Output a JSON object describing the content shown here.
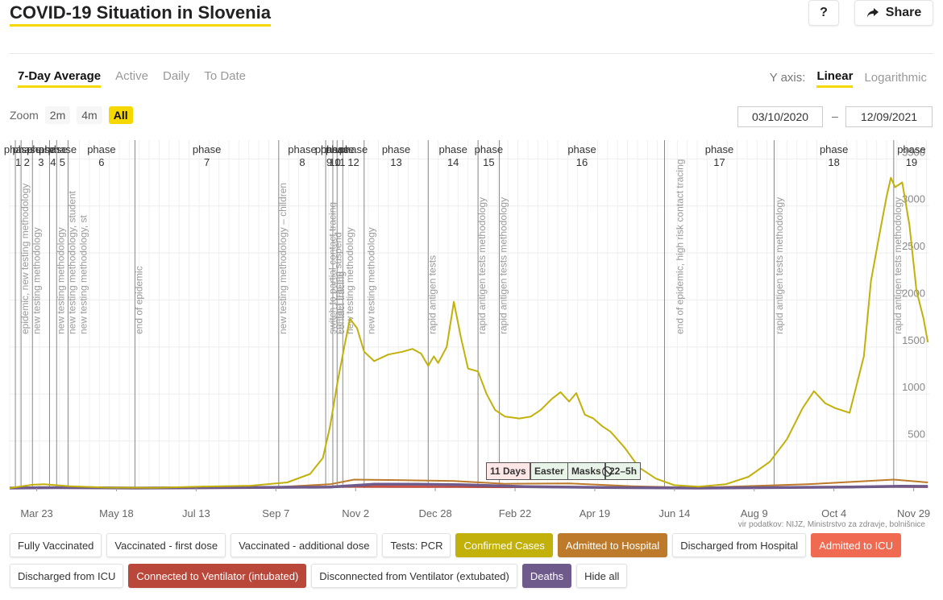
{
  "page": {
    "title": "COVID-19 Situation in Slovenia"
  },
  "header": {
    "help_label": "?",
    "share_label": "Share"
  },
  "tabs": [
    {
      "label": "7-Day Average",
      "active": true
    },
    {
      "label": "Active",
      "active": false
    },
    {
      "label": "Daily",
      "active": false
    },
    {
      "label": "To Date",
      "active": false
    }
  ],
  "yaxis": {
    "label": "Y axis:",
    "linear": "Linear",
    "log": "Logarithmic",
    "selected": "Linear"
  },
  "zoom": {
    "label": "Zoom",
    "options": [
      "2m",
      "4m",
      "All"
    ],
    "selected": "All"
  },
  "date_range": {
    "from": "03/10/2020",
    "separator": "–",
    "to": "12/09/2021"
  },
  "credit": "vir podatkov: NIJZ, Ministrstvo za zdravje, bolnišnice",
  "annotations": [
    {
      "label": "11 Days",
      "bg": "#fde6e6"
    },
    {
      "label": "Easter",
      "bg": "#e8f4e8"
    },
    {
      "label": "Masks",
      "bg": "#e8f4e8"
    },
    {
      "label": "⃠22–5h",
      "bg": "#e8f4e8"
    }
  ],
  "legend": [
    {
      "label": "Fully Vaccinated",
      "on": false,
      "color": ""
    },
    {
      "label": "Vaccinated - first dose",
      "on": false,
      "color": ""
    },
    {
      "label": "Vaccinated - additional dose",
      "on": false,
      "color": ""
    },
    {
      "label": "Tests: PCR",
      "on": false,
      "color": ""
    },
    {
      "label": "Confirmed Cases",
      "on": true,
      "color": "#c2b00b"
    },
    {
      "label": "Admitted to Hospital",
      "on": true,
      "color": "#bd7a2a"
    },
    {
      "label": "Discharged from Hospital",
      "on": false,
      "color": ""
    },
    {
      "label": "Admitted to ICU",
      "on": true,
      "color": "#f06a52"
    },
    {
      "label": "Discharged from ICU",
      "on": false,
      "color": ""
    },
    {
      "label": "Connected to Ventilator (intubated)",
      "on": true,
      "color": "#b9473a"
    },
    {
      "label": "Disconnected from Ventilator (extubated)",
      "on": false,
      "color": ""
    },
    {
      "label": "Deaths",
      "on": true,
      "color": "#6f5a8c"
    },
    {
      "label": "Hide all",
      "on": false,
      "color": ""
    }
  ],
  "chart_data": {
    "type": "line",
    "y_scale": "linear",
    "ylim": [
      0,
      3700
    ],
    "y_ticks": [
      500,
      1000,
      1500,
      2000,
      2500,
      3000,
      3500
    ],
    "x_domain": [
      "2020-03-04",
      "2021-12-10"
    ],
    "x_ticks": [
      {
        "date": "2020-03-23",
        "label": "Mar 23"
      },
      {
        "date": "2020-05-18",
        "label": "May 18"
      },
      {
        "date": "2020-07-13",
        "label": "Jul 13"
      },
      {
        "date": "2020-09-07",
        "label": "Sep 7"
      },
      {
        "date": "2020-11-02",
        "label": "Nov 2"
      },
      {
        "date": "2020-12-28",
        "label": "Dec 28"
      },
      {
        "date": "2021-02-22",
        "label": "Feb 22"
      },
      {
        "date": "2021-04-19",
        "label": "Apr 19"
      },
      {
        "date": "2021-06-14",
        "label": "Jun 14"
      },
      {
        "date": "2021-08-09",
        "label": "Aug 9"
      },
      {
        "date": "2021-10-04",
        "label": "Oct 4"
      },
      {
        "date": "2021-11-29",
        "label": "Nov 29"
      }
    ],
    "grid": true,
    "phases": [
      {
        "date": "2020-03-08",
        "name": "1"
      },
      {
        "date": "2020-03-12",
        "name": "2"
      },
      {
        "date": "2020-03-20",
        "name": "3"
      },
      {
        "date": "2020-04-01",
        "name": "4"
      },
      {
        "date": "2020-04-06",
        "name": "5"
      },
      {
        "date": "2020-04-14",
        "name": "6"
      },
      {
        "date": "2020-05-31",
        "name": "7"
      },
      {
        "date": "2020-09-09",
        "name": "8"
      },
      {
        "date": "2020-10-12",
        "name": "9"
      },
      {
        "date": "2020-10-17",
        "name": "10"
      },
      {
        "date": "2020-10-20",
        "name": "11"
      },
      {
        "date": "2020-10-24",
        "name": "12"
      },
      {
        "date": "2020-11-08",
        "name": "13"
      },
      {
        "date": "2020-12-23",
        "name": "14"
      },
      {
        "date": "2021-01-27",
        "name": "15"
      },
      {
        "date": "2021-02-11",
        "name": "16"
      },
      {
        "date": "2021-06-07",
        "name": "17"
      },
      {
        "date": "2021-08-23",
        "name": "18"
      },
      {
        "date": "2021-11-15",
        "name": "19"
      }
    ],
    "phase_word": "phase",
    "event_labels": [
      {
        "date": "2020-03-12",
        "text": "epidemic, new testing methodology"
      },
      {
        "date": "2020-03-20",
        "text": "new testing methodology"
      },
      {
        "date": "2020-04-06",
        "text": "new testing methodology"
      },
      {
        "date": "2020-04-14",
        "text": "new testing methodology, student"
      },
      {
        "date": "2020-04-22",
        "text": "new testing methodology, st"
      },
      {
        "date": "2020-05-31",
        "text": "end of epidemic"
      },
      {
        "date": "2020-09-09",
        "text": "new testing methodology – children"
      },
      {
        "date": "2020-10-14",
        "text": "switch to partial contact tracing"
      },
      {
        "date": "2020-10-18",
        "text": "contact tracing suspend"
      },
      {
        "date": "2020-10-20",
        "text": "contact tracing"
      },
      {
        "date": "2020-10-26",
        "text": "new testing methodology"
      },
      {
        "date": "2020-11-10",
        "text": "new testing methodology"
      },
      {
        "date": "2020-12-23",
        "text": "rapid antigen tests"
      },
      {
        "date": "2021-01-27",
        "text": "rapid antigen tests methodology"
      },
      {
        "date": "2021-02-11",
        "text": "rapid antigen tests methodology"
      },
      {
        "date": "2021-06-15",
        "text": "end of epidemic, high risk contact tracing"
      },
      {
        "date": "2021-08-24",
        "text": "rapid antigen tests methodology"
      },
      {
        "date": "2021-11-15",
        "text": "rapid antigen tests methodology"
      }
    ],
    "series": [
      {
        "name": "Confirmed Cases",
        "color": "#c2b00b",
        "points": [
          [
            "2020-03-04",
            0
          ],
          [
            "2020-03-20",
            35
          ],
          [
            "2020-03-28",
            40
          ],
          [
            "2020-04-15",
            20
          ],
          [
            "2020-05-10",
            5
          ],
          [
            "2020-06-15",
            3
          ],
          [
            "2020-07-15",
            15
          ],
          [
            "2020-08-20",
            25
          ],
          [
            "2020-09-15",
            60
          ],
          [
            "2020-10-01",
            150
          ],
          [
            "2020-10-10",
            320
          ],
          [
            "2020-10-15",
            650
          ],
          [
            "2020-10-20",
            1100
          ],
          [
            "2020-10-25",
            1500
          ],
          [
            "2020-10-29",
            1800
          ],
          [
            "2020-11-03",
            1700
          ],
          [
            "2020-11-08",
            1450
          ],
          [
            "2020-11-15",
            1350
          ],
          [
            "2020-11-25",
            1420
          ],
          [
            "2020-12-05",
            1450
          ],
          [
            "2020-12-12",
            1480
          ],
          [
            "2020-12-18",
            1430
          ],
          [
            "2020-12-23",
            1300
          ],
          [
            "2020-12-27",
            1400
          ],
          [
            "2020-12-30",
            1330
          ],
          [
            "2021-01-05",
            1500
          ],
          [
            "2021-01-10",
            1980
          ],
          [
            "2021-01-15",
            1600
          ],
          [
            "2021-01-20",
            1270
          ],
          [
            "2021-01-27",
            1240
          ],
          [
            "2021-02-02",
            1000
          ],
          [
            "2021-02-08",
            830
          ],
          [
            "2021-02-15",
            760
          ],
          [
            "2021-02-25",
            740
          ],
          [
            "2021-03-05",
            760
          ],
          [
            "2021-03-12",
            830
          ],
          [
            "2021-03-20",
            950
          ],
          [
            "2021-03-26",
            1020
          ],
          [
            "2021-04-01",
            920
          ],
          [
            "2021-04-06",
            1010
          ],
          [
            "2021-04-12",
            780
          ],
          [
            "2021-04-18",
            740
          ],
          [
            "2021-04-24",
            660
          ],
          [
            "2021-04-30",
            600
          ],
          [
            "2021-05-10",
            430
          ],
          [
            "2021-05-20",
            220
          ],
          [
            "2021-06-01",
            100
          ],
          [
            "2021-06-14",
            30
          ],
          [
            "2021-07-01",
            15
          ],
          [
            "2021-07-20",
            40
          ],
          [
            "2021-08-05",
            120
          ],
          [
            "2021-08-20",
            280
          ],
          [
            "2021-09-01",
            520
          ],
          [
            "2021-09-12",
            850
          ],
          [
            "2021-09-20",
            1030
          ],
          [
            "2021-09-28",
            900
          ],
          [
            "2021-10-05",
            850
          ],
          [
            "2021-10-15",
            800
          ],
          [
            "2021-10-25",
            1400
          ],
          [
            "2021-10-30",
            2200
          ],
          [
            "2021-11-05",
            2700
          ],
          [
            "2021-11-10",
            3100
          ],
          [
            "2021-11-13",
            3300
          ],
          [
            "2021-11-16",
            3200
          ],
          [
            "2021-11-21",
            3250
          ],
          [
            "2021-11-26",
            2800
          ],
          [
            "2021-12-01",
            2100
          ],
          [
            "2021-12-06",
            1800
          ],
          [
            "2021-12-09",
            1550
          ]
        ]
      },
      {
        "name": "Admitted to Hospital",
        "color": "#bd7a2a",
        "points": [
          [
            "2020-03-04",
            0
          ],
          [
            "2020-03-25",
            10
          ],
          [
            "2020-05-01",
            3
          ],
          [
            "2020-09-01",
            5
          ],
          [
            "2020-10-15",
            40
          ],
          [
            "2020-11-01",
            90
          ],
          [
            "2020-12-01",
            85
          ],
          [
            "2021-01-10",
            75
          ],
          [
            "2021-02-15",
            45
          ],
          [
            "2021-04-01",
            50
          ],
          [
            "2021-05-15",
            20
          ],
          [
            "2021-07-01",
            3
          ],
          [
            "2021-09-15",
            40
          ],
          [
            "2021-11-15",
            90
          ],
          [
            "2021-12-09",
            60
          ]
        ]
      },
      {
        "name": "Admitted to ICU",
        "color": "#f06a52",
        "points": [
          [
            "2020-03-04",
            0
          ],
          [
            "2020-03-25",
            3
          ],
          [
            "2020-09-01",
            1
          ],
          [
            "2020-11-01",
            18
          ],
          [
            "2021-01-10",
            16
          ],
          [
            "2021-04-01",
            10
          ],
          [
            "2021-07-01",
            1
          ],
          [
            "2021-11-15",
            18
          ],
          [
            "2021-12-09",
            12
          ]
        ]
      },
      {
        "name": "Connected to Ventilator (intubated)",
        "color": "#b9473a",
        "points": [
          [
            "2020-03-04",
            0
          ],
          [
            "2020-11-01",
            12
          ],
          [
            "2021-01-10",
            10
          ],
          [
            "2021-07-01",
            1
          ],
          [
            "2021-11-15",
            12
          ],
          [
            "2021-12-09",
            9
          ]
        ]
      },
      {
        "name": "Deaths",
        "color": "#6f5a8c",
        "points": [
          [
            "2020-03-04",
            0
          ],
          [
            "2020-04-05",
            4
          ],
          [
            "2020-06-01",
            0
          ],
          [
            "2020-10-15",
            10
          ],
          [
            "2020-11-15",
            40
          ],
          [
            "2020-12-15",
            40
          ],
          [
            "2021-01-15",
            35
          ],
          [
            "2021-03-01",
            15
          ],
          [
            "2021-05-01",
            5
          ],
          [
            "2021-07-01",
            0
          ],
          [
            "2021-10-15",
            10
          ],
          [
            "2021-11-20",
            20
          ],
          [
            "2021-12-09",
            18
          ]
        ]
      }
    ]
  }
}
